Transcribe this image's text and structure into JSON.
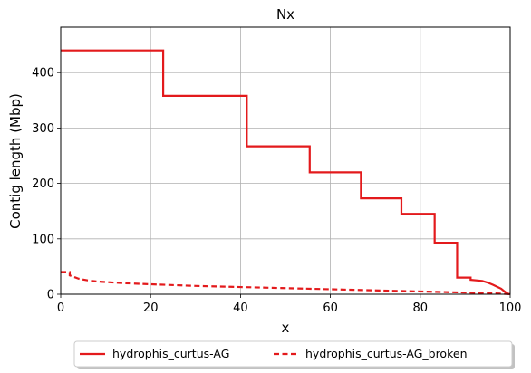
{
  "chart_data": {
    "type": "line",
    "title": "Nx",
    "xlabel": "x",
    "ylabel": "Contig length (Mbp)",
    "xlim": [
      0,
      100
    ],
    "ylim": [
      0,
      482
    ],
    "x_ticks": [
      "0",
      "20",
      "40",
      "60",
      "80",
      "100"
    ],
    "y_ticks": [
      "0",
      "100",
      "200",
      "300",
      "400"
    ],
    "grid": true,
    "legend_position": "bottom-center",
    "series": [
      {
        "name": "hydrophis_curtus-AG",
        "color": "#e31a1c",
        "style": "solid",
        "x": [
          0,
          22.8,
          22.8,
          41.4,
          41.4,
          55.4,
          55.4,
          66.8,
          66.8,
          75.8,
          75.8,
          83.2,
          83.2,
          88.2,
          88.2,
          91.2,
          91.2,
          93.8,
          95,
          96.2,
          97.2,
          98,
          98.6,
          99.1,
          99.5,
          100
        ],
        "y": [
          440,
          440,
          358,
          358,
          267,
          267,
          220,
          220,
          173,
          173,
          145,
          145,
          93,
          93,
          30,
          30,
          26,
          24,
          21,
          17,
          13,
          10,
          6,
          3,
          1,
          0
        ]
      },
      {
        "name": "hydrophis_curtus-AG_broken",
        "color": "#e31a1c",
        "style": "dashed",
        "x": [
          0,
          2,
          2,
          4,
          6,
          8,
          10,
          14,
          20,
          30,
          40,
          50,
          60,
          70,
          80,
          90,
          95,
          98,
          100
        ],
        "y": [
          40,
          40,
          34,
          28,
          25,
          23,
          22,
          20,
          18,
          15,
          13,
          11,
          9,
          7,
          5,
          3,
          2,
          1,
          0
        ]
      }
    ]
  }
}
